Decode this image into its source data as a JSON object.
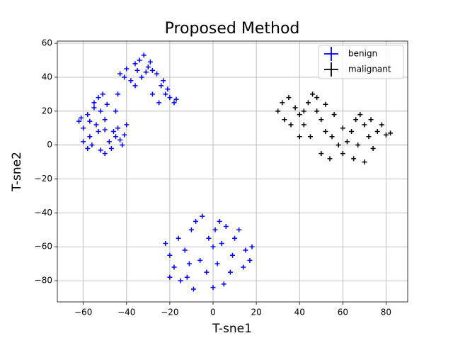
{
  "chart_data": {
    "type": "scatter",
    "title": "Proposed Method",
    "x_label": "T-sne1",
    "y_label": "T-sne2",
    "xlim": [
      -72,
      90
    ],
    "ylim": [
      -92.5,
      61.3
    ],
    "xticks": [
      {
        "value": -60,
        "label": "−60"
      },
      {
        "value": -40,
        "label": "−40"
      },
      {
        "value": -20,
        "label": "−20"
      },
      0,
      20,
      40,
      60,
      80
    ],
    "yticks": [
      {
        "value": -80,
        "label": "−80"
      },
      {
        "value": -60,
        "label": "−60"
      },
      {
        "value": -40,
        "label": "−40"
      },
      {
        "value": -20,
        "label": "−20"
      },
      0,
      20,
      40,
      60
    ],
    "grid": true,
    "legend": "upper right",
    "series": [
      {
        "name": "benign",
        "color": "#0000ff",
        "x": [
          -62,
          -60,
          -58,
          -57,
          -55,
          -53,
          -52,
          -50,
          -54,
          -56,
          -52,
          -48,
          -45,
          -42,
          -44,
          -40,
          -58,
          -60,
          -50,
          -47,
          -55,
          -51,
          -49,
          -53,
          -61,
          -57,
          -46,
          -43,
          -41,
          -50,
          -43,
          -40,
          -38,
          -36,
          -34,
          -32,
          -30,
          -28,
          -33,
          -26,
          -24,
          -22,
          -20,
          -18,
          -25,
          -28,
          -23,
          -36,
          -31,
          -41,
          -35,
          -29,
          -21,
          -17,
          -44,
          -45,
          -22,
          -20,
          -18,
          -15,
          -12,
          -10,
          -8,
          -5,
          -2,
          0,
          2,
          5,
          8,
          10,
          12,
          15,
          17,
          -16,
          -13,
          -6,
          -3,
          3,
          6,
          14,
          -9,
          0,
          4,
          9,
          -20,
          18,
          -11,
          1
        ],
        "values": [
          14,
          10,
          18,
          5,
          25,
          28,
          20,
          15,
          12,
          0,
          -3,
          2,
          5,
          0,
          10,
          12,
          -2,
          2,
          -5,
          -2,
          22,
          30,
          24,
          8,
          16,
          14,
          8,
          3,
          6,
          9,
          42,
          45,
          38,
          48,
          50,
          53,
          46,
          44,
          40,
          42,
          35,
          30,
          28,
          25,
          25,
          30,
          38,
          35,
          43,
          40,
          44,
          49,
          33,
          27,
          30,
          20,
          -58,
          -65,
          -72,
          -80,
          -78,
          -50,
          -45,
          -42,
          -55,
          -60,
          -70,
          -82,
          -75,
          -55,
          -50,
          -62,
          -68,
          -55,
          -62,
          -68,
          -75,
          -45,
          -48,
          -72,
          -85,
          -84,
          -58,
          -65,
          -78,
          -60,
          -70,
          -50
        ]
      },
      {
        "name": "malignant",
        "color": "#000000",
        "x": [
          30,
          32,
          35,
          38,
          33,
          40,
          42,
          44,
          46,
          48,
          50,
          52,
          55,
          58,
          60,
          62,
          64,
          66,
          68,
          70,
          72,
          74,
          76,
          78,
          80,
          45,
          50,
          54,
          65,
          70,
          56,
          42,
          36,
          48,
          60,
          73,
          82,
          67,
          52,
          40
        ],
        "values": [
          20,
          25,
          28,
          22,
          15,
          18,
          12,
          25,
          30,
          20,
          15,
          8,
          5,
          0,
          -5,
          2,
          8,
          15,
          18,
          12,
          5,
          -2,
          8,
          12,
          6,
          5,
          -5,
          -8,
          -8,
          -10,
          18,
          20,
          12,
          28,
          10,
          15,
          7,
          0,
          24,
          5
        ]
      }
    ]
  }
}
